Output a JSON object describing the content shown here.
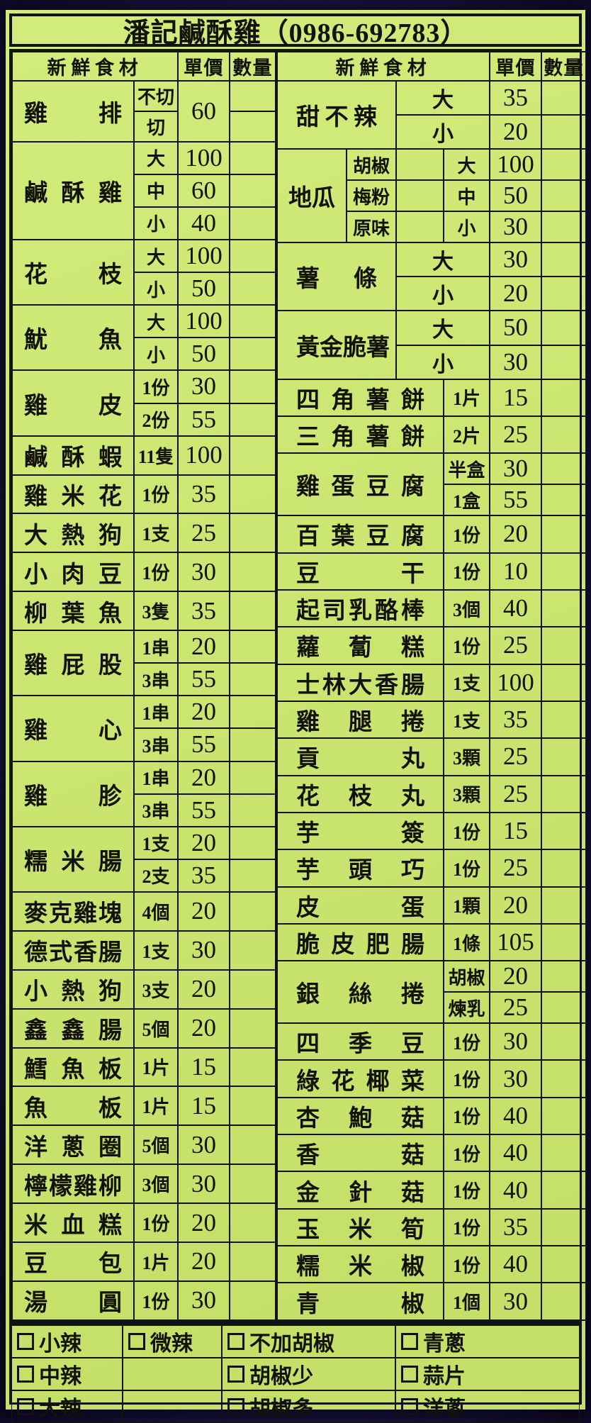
{
  "title": "潘記鹹酥雞（0986-692783）",
  "headers": {
    "item": "新鮮食材",
    "price": "單價",
    "qty": "數量"
  },
  "colors": {
    "card_bg": "#cbe671",
    "line": "#121210",
    "surround": "#17123a",
    "text": "#121208"
  },
  "left_menu": [
    {
      "name": "雞排",
      "price": "60",
      "rows": [
        {
          "spec": "不切"
        },
        {
          "spec": "切"
        }
      ]
    },
    {
      "name": "鹹酥雞",
      "rows": [
        {
          "spec": "大",
          "price": "100"
        },
        {
          "spec": "中",
          "price": "60"
        },
        {
          "spec": "小",
          "price": "40"
        }
      ]
    },
    {
      "name": "花枝",
      "rows": [
        {
          "spec": "大",
          "price": "100"
        },
        {
          "spec": "小",
          "price": "50"
        }
      ]
    },
    {
      "name": "魷魚",
      "rows": [
        {
          "spec": "大",
          "price": "100"
        },
        {
          "spec": "小",
          "price": "50"
        }
      ]
    },
    {
      "name": "雞皮",
      "rows": [
        {
          "spec": "1份",
          "price": "30"
        },
        {
          "spec": "2份",
          "price": "55"
        }
      ]
    },
    {
      "name": "鹹酥蝦",
      "rows": [
        {
          "spec": "11隻",
          "price": "100"
        }
      ]
    },
    {
      "name": "雞米花",
      "rows": [
        {
          "spec": "1份",
          "price": "35"
        }
      ]
    },
    {
      "name": "大熱狗",
      "rows": [
        {
          "spec": "1支",
          "price": "25"
        }
      ]
    },
    {
      "name": "小肉豆",
      "rows": [
        {
          "spec": "1份",
          "price": "30"
        }
      ]
    },
    {
      "name": "柳葉魚",
      "rows": [
        {
          "spec": "3隻",
          "price": "35"
        }
      ]
    },
    {
      "name": "雞屁股",
      "rows": [
        {
          "spec": "1串",
          "price": "20"
        },
        {
          "spec": "3串",
          "price": "55"
        }
      ]
    },
    {
      "name": "雞心",
      "rows": [
        {
          "spec": "1串",
          "price": "20"
        },
        {
          "spec": "3串",
          "price": "55"
        }
      ]
    },
    {
      "name": "雞胗",
      "rows": [
        {
          "spec": "1串",
          "price": "20"
        },
        {
          "spec": "3串",
          "price": "55"
        }
      ]
    },
    {
      "name": "糯米腸",
      "rows": [
        {
          "spec": "1支",
          "price": "20"
        },
        {
          "spec": "2支",
          "price": "35"
        }
      ]
    },
    {
      "name": "麥克雞塊",
      "rows": [
        {
          "spec": "4個",
          "price": "20"
        }
      ]
    },
    {
      "name": "德式香腸",
      "rows": [
        {
          "spec": "1支",
          "price": "30"
        }
      ]
    },
    {
      "name": "小熱狗",
      "rows": [
        {
          "spec": "3支",
          "price": "20"
        }
      ]
    },
    {
      "name": "鑫鑫腸",
      "rows": [
        {
          "spec": "5個",
          "price": "20"
        }
      ]
    },
    {
      "name": "鱈魚板",
      "rows": [
        {
          "spec": "1片",
          "price": "15"
        }
      ]
    },
    {
      "name": "魚板",
      "rows": [
        {
          "spec": "1片",
          "price": "15"
        }
      ]
    },
    {
      "name": "洋蔥圈",
      "rows": [
        {
          "spec": "5個",
          "price": "30"
        }
      ]
    },
    {
      "name": "檸檬雞柳",
      "rows": [
        {
          "spec": "3個",
          "price": "30"
        }
      ]
    },
    {
      "name": "米血糕",
      "rows": [
        {
          "spec": "1份",
          "price": "20"
        }
      ]
    },
    {
      "name": "豆包",
      "rows": [
        {
          "spec": "1片",
          "price": "20"
        }
      ]
    },
    {
      "name": "湯圓",
      "rows": [
        {
          "spec": "1份",
          "price": "30"
        }
      ]
    }
  ],
  "right_menu": [
    {
      "name": "甜不辣",
      "layout": "wide_size",
      "rows": [
        {
          "spec": "大",
          "price": "35"
        },
        {
          "spec": "小",
          "price": "20"
        }
      ]
    },
    {
      "name": "地瓜",
      "layout": "flavor_size",
      "rows": [
        {
          "flavor": "胡椒",
          "size": "大",
          "price": "100"
        },
        {
          "flavor": "梅粉",
          "size": "中",
          "price": "50"
        },
        {
          "flavor": "原味",
          "size": "小",
          "price": "30"
        }
      ]
    },
    {
      "name": "薯條",
      "layout": "wide_size",
      "rows": [
        {
          "spec": "大",
          "price": "30"
        },
        {
          "spec": "小",
          "price": "20"
        }
      ]
    },
    {
      "name": "黃金脆薯",
      "layout": "wide_size",
      "rows": [
        {
          "spec": "大",
          "price": "50"
        },
        {
          "spec": "小",
          "price": "30"
        }
      ]
    },
    {
      "name": "四角薯餅",
      "rows": [
        {
          "spec": "1片",
          "price": "15"
        }
      ]
    },
    {
      "name": "三角薯餅",
      "rows": [
        {
          "spec": "2片",
          "price": "25"
        }
      ]
    },
    {
      "name": "雞蛋豆腐",
      "rows": [
        {
          "spec": "半盒",
          "price": "30"
        },
        {
          "spec": "1盒",
          "price": "55"
        }
      ]
    },
    {
      "name": "百葉豆腐",
      "rows": [
        {
          "spec": "1份",
          "price": "20"
        }
      ]
    },
    {
      "name": "豆干",
      "rows": [
        {
          "spec": "1份",
          "price": "10"
        }
      ]
    },
    {
      "name": "起司乳酪棒",
      "rows": [
        {
          "spec": "3個",
          "price": "40"
        }
      ]
    },
    {
      "name": "蘿蔔糕",
      "rows": [
        {
          "spec": "1份",
          "price": "25"
        }
      ]
    },
    {
      "name": "士林大香腸",
      "rows": [
        {
          "spec": "1支",
          "price": "100"
        }
      ]
    },
    {
      "name": "雞腿捲",
      "rows": [
        {
          "spec": "1支",
          "price": "35"
        }
      ]
    },
    {
      "name": "貢丸",
      "rows": [
        {
          "spec": "3顆",
          "price": "25"
        }
      ]
    },
    {
      "name": "花枝丸",
      "rows": [
        {
          "spec": "3顆",
          "price": "25"
        }
      ]
    },
    {
      "name": "芋簽",
      "rows": [
        {
          "spec": "1份",
          "price": "15"
        }
      ]
    },
    {
      "name": "芋頭巧",
      "rows": [
        {
          "spec": "1份",
          "price": "25"
        }
      ]
    },
    {
      "name": "皮蛋",
      "rows": [
        {
          "spec": "1顆",
          "price": "20"
        }
      ]
    },
    {
      "name": "脆皮肥腸",
      "rows": [
        {
          "spec": "1條",
          "price": "105"
        }
      ]
    },
    {
      "name": "銀絲捲",
      "rows": [
        {
          "spec": "胡椒",
          "price": "20"
        },
        {
          "spec": "煉乳",
          "price": "25"
        }
      ]
    },
    {
      "name": "四季豆",
      "rows": [
        {
          "spec": "1份",
          "price": "30"
        }
      ]
    },
    {
      "name": "綠花椰菜",
      "rows": [
        {
          "spec": "1份",
          "price": "30"
        }
      ]
    },
    {
      "name": "杏鮑菇",
      "rows": [
        {
          "spec": "1份",
          "price": "40"
        }
      ]
    },
    {
      "name": "香菇",
      "rows": [
        {
          "spec": "1份",
          "price": "40"
        }
      ]
    },
    {
      "name": "金針菇",
      "rows": [
        {
          "spec": "1份",
          "price": "40"
        }
      ]
    },
    {
      "name": "玉米筍",
      "rows": [
        {
          "spec": "1份",
          "price": "35"
        }
      ]
    },
    {
      "name": "糯米椒",
      "rows": [
        {
          "spec": "1份",
          "price": "40"
        }
      ]
    },
    {
      "name": "青椒",
      "rows": [
        {
          "spec": "1個",
          "price": "30"
        }
      ]
    }
  ],
  "options": {
    "rows": [
      [
        "小辣",
        "微辣",
        "不加胡椒",
        "青蔥"
      ],
      [
        "中辣",
        "",
        "胡椒少",
        "蒜片"
      ],
      [
        "大辣",
        "",
        "胡椒多",
        "洋蔥"
      ]
    ]
  }
}
